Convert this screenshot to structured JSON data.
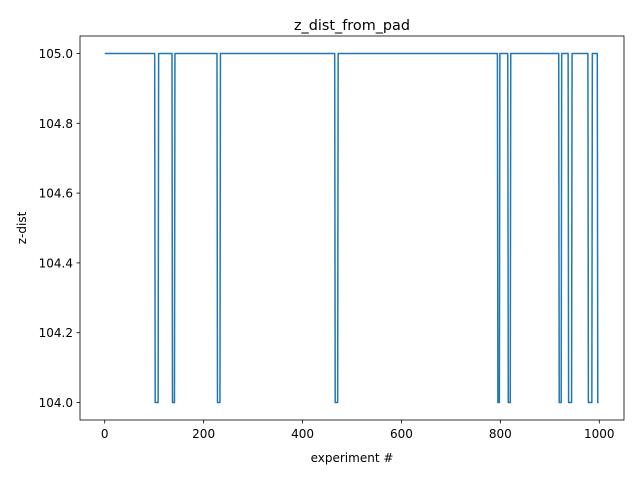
{
  "chart_data": {
    "type": "line",
    "title": "z_dist_from_pad",
    "xlabel": "experiment #",
    "ylabel": "z-dist",
    "xlim": [
      -50,
      1050
    ],
    "ylim": [
      103.95,
      105.05
    ],
    "xticks": [
      0,
      200,
      400,
      600,
      800,
      1000
    ],
    "xtick_labels": [
      "0",
      "200",
      "400",
      "600",
      "800",
      "1000"
    ],
    "yticks": [
      104.0,
      104.2,
      104.4,
      104.6,
      104.8,
      105.0
    ],
    "ytick_labels": [
      "104.0",
      "104.2",
      "104.4",
      "104.6",
      "104.8",
      "105.0"
    ],
    "grid": false,
    "legend": "none",
    "line_color": "#1f77b4",
    "series": [
      {
        "x": [
          0,
          101,
          102,
          108,
          109,
          136,
          137,
          141,
          142,
          227,
          228,
          233,
          234,
          465,
          466,
          471,
          472,
          794,
          795,
          798,
          799,
          815,
          816,
          820,
          821,
          918,
          919,
          923,
          924,
          937,
          938,
          944,
          945,
          977,
          978,
          985,
          986,
          996,
          997,
          999
        ],
        "y": [
          105.0,
          105.0,
          104.0,
          104.0,
          105.0,
          105.0,
          104.0,
          104.0,
          105.0,
          105.0,
          104.0,
          104.0,
          105.0,
          105.0,
          104.0,
          104.0,
          105.0,
          105.0,
          104.0,
          104.0,
          105.0,
          105.0,
          104.0,
          104.0,
          105.0,
          105.0,
          104.0,
          104.0,
          105.0,
          105.0,
          104.0,
          104.0,
          105.0,
          105.0,
          104.0,
          104.0,
          105.0,
          105.0,
          104.0,
          104.0
        ]
      }
    ]
  }
}
